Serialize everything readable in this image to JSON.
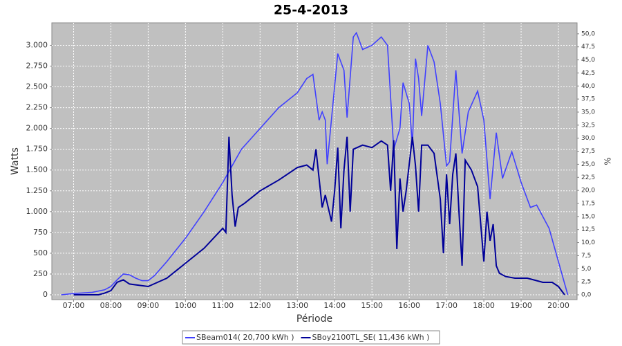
{
  "chart_data": {
    "type": "line",
    "title": "25-4-2013",
    "x_label": "Période",
    "y_label": "Watts",
    "y2_label": "%",
    "xlim": [
      "06:25",
      "20:30"
    ],
    "xticks": [
      "07:00",
      "08:00",
      "09:00",
      "10:00",
      "11:00",
      "12:00",
      "13:00",
      "14:00",
      "15:00",
      "16:00",
      "17:00",
      "18:00",
      "19:00",
      "20:00"
    ],
    "ylim": [
      -58,
      3270
    ],
    "yticks": [
      0,
      250,
      500,
      750,
      {
        "value": 1000,
        "label": "1.000"
      },
      {
        "value": 1250,
        "label": "1.250"
      },
      {
        "value": 1500,
        "label": "1.500"
      },
      {
        "value": 1750,
        "label": "1.750"
      },
      {
        "value": 2000,
        "label": "2.000"
      },
      {
        "value": 2250,
        "label": "2.250"
      },
      {
        "value": 2500,
        "label": "2.500"
      },
      {
        "value": 2750,
        "label": "2.750"
      },
      {
        "value": 3000,
        "label": "3.000"
      }
    ],
    "y2lim": [
      -0.93,
      52.1
    ],
    "y2ticks": [
      {
        "value": 0,
        "label": "0,0"
      },
      {
        "value": 2.5,
        "label": "2,5"
      },
      {
        "value": 5,
        "label": "5,0"
      },
      {
        "value": 7.5,
        "label": "7,5"
      },
      {
        "value": 10,
        "label": "10,0"
      },
      {
        "value": 12.5,
        "label": "12,5"
      },
      {
        "value": 15,
        "label": "15,0"
      },
      {
        "value": 17.5,
        "label": "17,5"
      },
      {
        "value": 20,
        "label": "20,0"
      },
      {
        "value": 22.5,
        "label": "22,5"
      },
      {
        "value": 25,
        "label": "25,0"
      },
      {
        "value": 27.5,
        "label": "27,5"
      },
      {
        "value": 30,
        "label": "30,0"
      },
      {
        "value": 32.5,
        "label": "32,5"
      },
      {
        "value": 35,
        "label": "35,0"
      },
      {
        "value": 37.5,
        "label": "37,5"
      },
      {
        "value": 40,
        "label": "40,0"
      },
      {
        "value": 42.5,
        "label": "42,5"
      },
      {
        "value": 45,
        "label": "45,0"
      },
      {
        "value": 47.5,
        "label": "47,5"
      },
      {
        "value": 50,
        "label": "50,0"
      }
    ],
    "grid": true,
    "legend": "bottom",
    "series": [
      {
        "name": "SBeam014( 20,700 kWh )",
        "color": "#4040ff",
        "x": [
          "06:40",
          "07:00",
          "07:30",
          "07:50",
          "08:00",
          "08:10",
          "08:20",
          "08:30",
          "08:40",
          "08:50",
          "09:00",
          "09:10",
          "09:30",
          "10:00",
          "10:30",
          "11:00",
          "11:15",
          "11:30",
          "12:00",
          "12:30",
          "13:00",
          "13:15",
          "13:25",
          "13:35",
          "13:40",
          "13:45",
          "13:48",
          "14:05",
          "14:15",
          "14:20",
          "14:30",
          "14:35",
          "14:45",
          "15:00",
          "15:15",
          "15:25",
          "15:35",
          "15:45",
          "15:50",
          "16:00",
          "16:05",
          "16:10",
          "16:15",
          "16:20",
          "16:30",
          "16:40",
          "16:50",
          "17:00",
          "17:05",
          "17:15",
          "17:25",
          "17:35",
          "17:50",
          "18:00",
          "18:10",
          "18:20",
          "18:30",
          "18:45",
          "19:00",
          "19:15",
          "19:25",
          "19:45",
          "20:00",
          "20:15"
        ],
        "values": [
          0,
          15,
          30,
          60,
          100,
          180,
          250,
          240,
          200,
          170,
          170,
          230,
          400,
          680,
          1000,
          1350,
          1550,
          1750,
          2000,
          2250,
          2430,
          2600,
          2650,
          2100,
          2200,
          2100,
          1570,
          2900,
          2700,
          2130,
          3100,
          3150,
          2950,
          3000,
          3100,
          3000,
          1750,
          2000,
          2550,
          2300,
          1800,
          2840,
          2600,
          2150,
          3000,
          2800,
          2300,
          1550,
          1600,
          2700,
          1700,
          2200,
          2450,
          2100,
          1150,
          1950,
          1400,
          1720,
          1350,
          1050,
          1080,
          800,
          400,
          0
        ]
      },
      {
        "name": "SBoy2100TL_SE( 11,436 kWh )",
        "color": "#000099",
        "x": [
          "07:00",
          "07:40",
          "07:50",
          "08:00",
          "08:10",
          "08:20",
          "08:30",
          "08:40",
          "09:00",
          "09:15",
          "09:30",
          "10:00",
          "10:30",
          "11:00",
          "11:05",
          "11:10",
          "11:15",
          "11:20",
          "11:25",
          "11:35",
          "12:00",
          "12:30",
          "13:00",
          "13:15",
          "13:25",
          "13:30",
          "13:40",
          "13:45",
          "13:55",
          "14:00",
          "14:05",
          "14:10",
          "14:15",
          "14:20",
          "14:25",
          "14:30",
          "14:45",
          "15:00",
          "15:15",
          "15:25",
          "15:30",
          "15:35",
          "15:40",
          "15:45",
          "15:50",
          "15:55",
          "16:05",
          "16:10",
          "16:15",
          "16:20",
          "16:30",
          "16:40",
          "16:50",
          "16:55",
          "17:00",
          "17:05",
          "17:10",
          "17:15",
          "17:20",
          "17:25",
          "17:30",
          "17:40",
          "17:50",
          "18:00",
          "18:05",
          "18:10",
          "18:15",
          "18:20",
          "18:25",
          "18:35",
          "18:50",
          "19:10",
          "19:20",
          "19:35",
          "19:50",
          "20:00",
          "20:10"
        ],
        "values": [
          0,
          0,
          20,
          50,
          150,
          180,
          130,
          120,
          100,
          150,
          200,
          380,
          560,
          800,
          750,
          1900,
          1200,
          820,
          1050,
          1100,
          1250,
          1380,
          1530,
          1560,
          1500,
          1750,
          1050,
          1200,
          880,
          1250,
          1770,
          800,
          1500,
          1900,
          1000,
          1750,
          1800,
          1770,
          1850,
          1800,
          1250,
          1860,
          550,
          1400,
          1000,
          1250,
          1900,
          1550,
          1000,
          1800,
          1800,
          1700,
          1150,
          500,
          1450,
          850,
          1450,
          1700,
          1000,
          350,
          1620,
          1500,
          1300,
          400,
          1000,
          650,
          850,
          350,
          260,
          220,
          200,
          200,
          180,
          150,
          150,
          100,
          0
        ]
      }
    ]
  }
}
